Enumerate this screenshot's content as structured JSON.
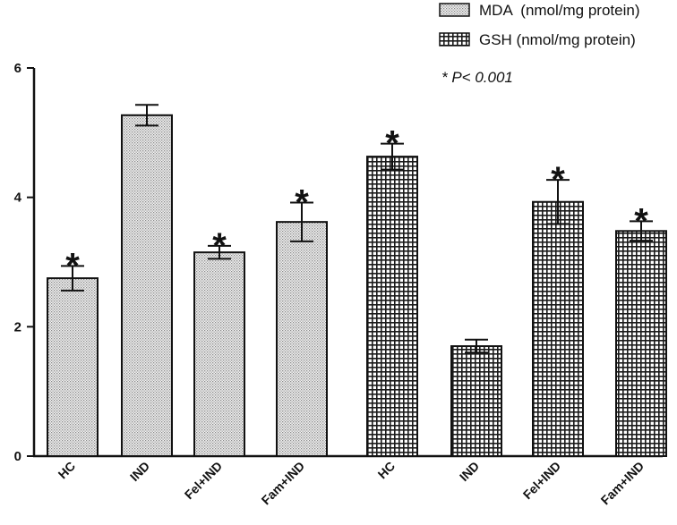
{
  "chart_data": {
    "type": "bar",
    "title": "",
    "xlabel": "",
    "ylabel": "",
    "ylim": [
      0,
      6
    ],
    "yticks": [
      "0",
      "2",
      "4",
      "6"
    ],
    "grid": false,
    "legend_position": "top-right",
    "annotation": "* P< 0.001",
    "significance_marker": "*",
    "series": [
      {
        "name": "MDA  (nmol/mg protein)",
        "pattern": "light-dots",
        "categories": [
          "HC",
          "IND",
          "Fel+IND",
          "Fam+IND"
        ],
        "values": [
          2.75,
          5.27,
          3.15,
          3.62
        ],
        "errors": [
          0.19,
          0.16,
          0.1,
          0.3
        ],
        "significant": [
          true,
          false,
          true,
          true
        ]
      },
      {
        "name": "GSH (nmol/mg protein)",
        "pattern": "dark-grid",
        "categories": [
          "HC",
          "IND",
          "Fel+IND",
          "Fam+IND"
        ],
        "values": [
          4.63,
          1.7,
          3.93,
          3.48
        ],
        "errors": [
          0.2,
          0.1,
          0.34,
          0.15
        ],
        "significant": [
          true,
          false,
          true,
          true
        ]
      }
    ]
  }
}
